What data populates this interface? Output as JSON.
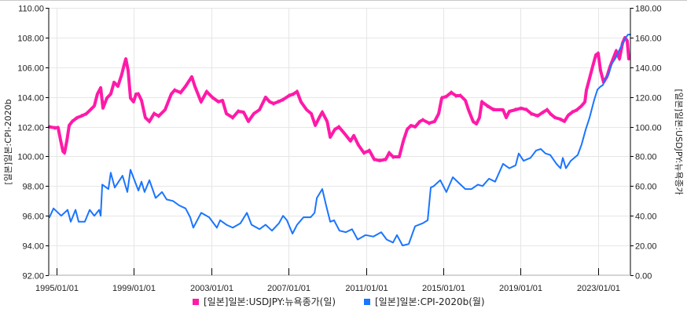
{
  "chart_data": {
    "type": "line",
    "title": "",
    "left_axis": {
      "label": "[일본]일본:CPI-2020b",
      "min": 92,
      "max": 110,
      "step": 2,
      "ticks": [
        "92.00",
        "94.00",
        "96.00",
        "98.00",
        "100.00",
        "102.00",
        "104.00",
        "106.00",
        "108.00",
        "110.00"
      ]
    },
    "right_axis": {
      "label": "[일본]일본:USDJPY:뉴욕종가",
      "min": 0,
      "max": 180,
      "step": 20,
      "ticks": [
        "0.00",
        "20.00",
        "40.00",
        "60.00",
        "80.00",
        "100.00",
        "120.00",
        "140.00",
        "160.00",
        "180.00"
      ]
    },
    "x_axis": {
      "min": 1994.6,
      "max": 2024.7,
      "ticks": [
        {
          "label": "1995/01/01",
          "year": 1995.0
        },
        {
          "label": "1999/01/01",
          "year": 1999.0
        },
        {
          "label": "2003/01/01",
          "year": 2003.0
        },
        {
          "label": "2007/01/01",
          "year": 2007.0
        },
        {
          "label": "2011/01/01",
          "year": 2011.0
        },
        {
          "label": "2015/01/01",
          "year": 2015.0
        },
        {
          "label": "2019/01/01",
          "year": 2019.0
        },
        {
          "label": "2023/01/01",
          "year": 2023.0
        }
      ]
    },
    "grid": true,
    "legend_position": "bottom",
    "series": [
      {
        "name": "[일본]일본:USDJPY:뉴욕종가(일)",
        "axis": "right",
        "color": "#ff1aa8",
        "points": [
          [
            1994.63,
            99.8
          ],
          [
            1994.92,
            99.3
          ],
          [
            1995.08,
            99.3
          ],
          [
            1995.2,
            91.3
          ],
          [
            1995.33,
            83.4
          ],
          [
            1995.41,
            82.4
          ],
          [
            1995.53,
            90.3
          ],
          [
            1995.65,
            100.8
          ],
          [
            1995.81,
            103.5
          ],
          [
            1996.06,
            106.1
          ],
          [
            1996.3,
            107.2
          ],
          [
            1996.54,
            108.8
          ],
          [
            1996.75,
            111.4
          ],
          [
            1996.95,
            114.0
          ],
          [
            1997.11,
            122.0
          ],
          [
            1997.28,
            126.2
          ],
          [
            1997.4,
            112.5
          ],
          [
            1997.6,
            119.3
          ],
          [
            1997.8,
            122.0
          ],
          [
            1997.97,
            129.9
          ],
          [
            1998.17,
            127.2
          ],
          [
            1998.37,
            135.2
          ],
          [
            1998.5,
            142.0
          ],
          [
            1998.58,
            145.7
          ],
          [
            1998.7,
            137.8
          ],
          [
            1998.82,
            119.3
          ],
          [
            1998.98,
            116.7
          ],
          [
            1999.11,
            122.0
          ],
          [
            1999.23,
            122.0
          ],
          [
            1999.39,
            117.7
          ],
          [
            1999.59,
            106.1
          ],
          [
            1999.8,
            103.5
          ],
          [
            2000.04,
            108.8
          ],
          [
            2000.28,
            107.2
          ],
          [
            2000.61,
            111.4
          ],
          [
            2000.93,
            122.0
          ],
          [
            2001.1,
            124.6
          ],
          [
            2001.42,
            123.0
          ],
          [
            2001.67,
            127.2
          ],
          [
            2001.99,
            133.6
          ],
          [
            2002.15,
            127.2
          ],
          [
            2002.47,
            116.7
          ],
          [
            2002.76,
            123.6
          ],
          [
            2003.05,
            119.8
          ],
          [
            2003.37,
            116.7
          ],
          [
            2003.58,
            117.7
          ],
          [
            2003.78,
            108.8
          ],
          [
            2004.11,
            106.1
          ],
          [
            2004.39,
            110.3
          ],
          [
            2004.67,
            109.8
          ],
          [
            2004.92,
            103.5
          ],
          [
            2005.2,
            108.8
          ],
          [
            2005.49,
            111.4
          ],
          [
            2005.81,
            119.8
          ],
          [
            2006.02,
            116.7
          ],
          [
            2006.22,
            115.6
          ],
          [
            2006.46,
            116.7
          ],
          [
            2006.71,
            118.3
          ],
          [
            2007.03,
            120.9
          ],
          [
            2007.24,
            122.0
          ],
          [
            2007.44,
            123.6
          ],
          [
            2007.64,
            116.7
          ],
          [
            2007.93,
            111.4
          ],
          [
            2008.17,
            108.8
          ],
          [
            2008.38,
            100.8
          ],
          [
            2008.58,
            106.1
          ],
          [
            2008.74,
            109.8
          ],
          [
            2008.99,
            103.5
          ],
          [
            2009.15,
            92.9
          ],
          [
            2009.39,
            98.2
          ],
          [
            2009.6,
            99.8
          ],
          [
            2009.88,
            95.6
          ],
          [
            2010.2,
            90.3
          ],
          [
            2010.37,
            94.0
          ],
          [
            2010.61,
            87.6
          ],
          [
            2010.89,
            82.4
          ],
          [
            2011.18,
            83.9
          ],
          [
            2011.42,
            78.1
          ],
          [
            2011.71,
            77.1
          ],
          [
            2012.03,
            78.1
          ],
          [
            2012.2,
            82.4
          ],
          [
            2012.4,
            79.7
          ],
          [
            2012.72,
            79.7
          ],
          [
            2012.93,
            90.3
          ],
          [
            2013.13,
            98.2
          ],
          [
            2013.33,
            100.8
          ],
          [
            2013.54,
            99.8
          ],
          [
            2013.78,
            103.5
          ],
          [
            2013.94,
            104.5
          ],
          [
            2014.27,
            102.4
          ],
          [
            2014.55,
            103.5
          ],
          [
            2014.76,
            108.8
          ],
          [
            2014.92,
            119.3
          ],
          [
            2015.16,
            120.4
          ],
          [
            2015.41,
            123.0
          ],
          [
            2015.65,
            120.9
          ],
          [
            2015.89,
            120.9
          ],
          [
            2016.14,
            117.7
          ],
          [
            2016.3,
            111.4
          ],
          [
            2016.54,
            103.5
          ],
          [
            2016.71,
            101.9
          ],
          [
            2016.87,
            106.1
          ],
          [
            2016.99,
            116.7
          ],
          [
            2017.28,
            114.0
          ],
          [
            2017.6,
            111.4
          ],
          [
            2018.09,
            111.4
          ],
          [
            2018.25,
            106.1
          ],
          [
            2018.41,
            110.3
          ],
          [
            2018.74,
            111.4
          ],
          [
            2019.02,
            112.5
          ],
          [
            2019.31,
            111.4
          ],
          [
            2019.55,
            108.8
          ],
          [
            2019.88,
            107.2
          ],
          [
            2020.16,
            109.8
          ],
          [
            2020.37,
            111.4
          ],
          [
            2020.53,
            108.8
          ],
          [
            2020.77,
            106.1
          ],
          [
            2021.06,
            105.1
          ],
          [
            2021.26,
            103.5
          ],
          [
            2021.46,
            107.7
          ],
          [
            2021.67,
            109.8
          ],
          [
            2021.91,
            111.4
          ],
          [
            2022.15,
            114.0
          ],
          [
            2022.32,
            116.7
          ],
          [
            2022.4,
            124.6
          ],
          [
            2022.56,
            132.5
          ],
          [
            2022.72,
            140.4
          ],
          [
            2022.89,
            148.4
          ],
          [
            2023.01,
            149.4
          ],
          [
            2023.13,
            137.8
          ],
          [
            2023.29,
            129.9
          ],
          [
            2023.46,
            133.6
          ],
          [
            2023.62,
            140.4
          ],
          [
            2023.78,
            145.7
          ],
          [
            2023.94,
            151.0
          ],
          [
            2024.11,
            145.7
          ],
          [
            2024.27,
            156.3
          ],
          [
            2024.39,
            160.0
          ],
          [
            2024.51,
            157.9
          ],
          [
            2024.59,
            145.7
          ]
        ]
      },
      {
        "name": "[일본]일본:CPI-2020b(월)",
        "axis": "left",
        "color": "#1a75ff",
        "points": [
          [
            1994.63,
            95.9
          ],
          [
            1994.84,
            96.5
          ],
          [
            1995.24,
            96.0
          ],
          [
            1995.57,
            96.4
          ],
          [
            1995.73,
            95.6
          ],
          [
            1995.98,
            96.4
          ],
          [
            1996.14,
            95.6
          ],
          [
            1996.46,
            95.6
          ],
          [
            1996.71,
            96.4
          ],
          [
            1996.95,
            96.0
          ],
          [
            1997.2,
            96.4
          ],
          [
            1997.28,
            96.0
          ],
          [
            1997.36,
            98.1
          ],
          [
            1997.68,
            97.8
          ],
          [
            1997.8,
            98.9
          ],
          [
            1998.01,
            97.9
          ],
          [
            1998.41,
            98.7
          ],
          [
            1998.66,
            97.6
          ],
          [
            1998.82,
            99.1
          ],
          [
            1999.23,
            97.7
          ],
          [
            1999.39,
            98.3
          ],
          [
            1999.55,
            97.6
          ],
          [
            1999.8,
            98.4
          ],
          [
            2000.12,
            97.2
          ],
          [
            2000.45,
            97.6
          ],
          [
            2000.69,
            97.1
          ],
          [
            2001.02,
            97.0
          ],
          [
            2001.34,
            96.7
          ],
          [
            2001.67,
            96.5
          ],
          [
            2001.91,
            95.9
          ],
          [
            2002.07,
            95.2
          ],
          [
            2002.48,
            96.2
          ],
          [
            2002.89,
            95.9
          ],
          [
            2003.29,
            95.2
          ],
          [
            2003.46,
            95.7
          ],
          [
            2003.78,
            95.4
          ],
          [
            2004.11,
            95.2
          ],
          [
            2004.51,
            95.5
          ],
          [
            2004.84,
            96.2
          ],
          [
            2005.08,
            95.4
          ],
          [
            2005.49,
            95.1
          ],
          [
            2005.81,
            95.4
          ],
          [
            2006.14,
            95.0
          ],
          [
            2006.5,
            95.5
          ],
          [
            2006.71,
            96.0
          ],
          [
            2006.91,
            95.7
          ],
          [
            2007.2,
            94.8
          ],
          [
            2007.44,
            95.4
          ],
          [
            2007.77,
            95.9
          ],
          [
            2008.14,
            95.9
          ],
          [
            2008.34,
            96.2
          ],
          [
            2008.46,
            97.2
          ],
          [
            2008.74,
            97.8
          ],
          [
            2008.94,
            96.7
          ],
          [
            2009.15,
            95.6
          ],
          [
            2009.35,
            95.7
          ],
          [
            2009.63,
            95.0
          ],
          [
            2009.96,
            94.9
          ],
          [
            2010.28,
            95.1
          ],
          [
            2010.57,
            94.4
          ],
          [
            2010.98,
            94.7
          ],
          [
            2011.38,
            94.6
          ],
          [
            2011.79,
            94.9
          ],
          [
            2012.07,
            94.4
          ],
          [
            2012.4,
            94.2
          ],
          [
            2012.6,
            94.7
          ],
          [
            2012.89,
            94.0
          ],
          [
            2013.21,
            94.1
          ],
          [
            2013.54,
            95.3
          ],
          [
            2013.94,
            95.5
          ],
          [
            2014.19,
            95.7
          ],
          [
            2014.35,
            97.9
          ],
          [
            2014.51,
            98.0
          ],
          [
            2014.84,
            98.4
          ],
          [
            2015.16,
            97.6
          ],
          [
            2015.49,
            98.6
          ],
          [
            2015.81,
            98.2
          ],
          [
            2016.14,
            97.8
          ],
          [
            2016.46,
            97.8
          ],
          [
            2016.79,
            98.1
          ],
          [
            2017.03,
            98.0
          ],
          [
            2017.36,
            98.5
          ],
          [
            2017.68,
            98.3
          ],
          [
            2018.09,
            99.5
          ],
          [
            2018.41,
            99.2
          ],
          [
            2018.74,
            99.4
          ],
          [
            2018.9,
            100.2
          ],
          [
            2019.15,
            99.7
          ],
          [
            2019.51,
            99.9
          ],
          [
            2019.8,
            100.4
          ],
          [
            2020.04,
            100.5
          ],
          [
            2020.28,
            100.2
          ],
          [
            2020.53,
            100.1
          ],
          [
            2020.85,
            99.5
          ],
          [
            2021.06,
            99.2
          ],
          [
            2021.18,
            99.9
          ],
          [
            2021.34,
            99.2
          ],
          [
            2021.59,
            99.7
          ],
          [
            2021.95,
            100.1
          ],
          [
            2022.15,
            100.8
          ],
          [
            2022.36,
            101.8
          ],
          [
            2022.56,
            102.6
          ],
          [
            2022.8,
            103.8
          ],
          [
            2022.97,
            104.5
          ],
          [
            2023.13,
            104.7
          ],
          [
            2023.25,
            104.8
          ],
          [
            2023.37,
            105.2
          ],
          [
            2023.54,
            105.5
          ],
          [
            2023.7,
            106.2
          ],
          [
            2023.9,
            106.6
          ],
          [
            2024.19,
            107.4
          ],
          [
            2024.39,
            107.9
          ],
          [
            2024.55,
            108.2
          ],
          [
            2024.67,
            108.2
          ]
        ]
      }
    ]
  },
  "legend": {
    "items": [
      {
        "label": "[일본]일본:USDJPY:뉴욕종가(일)",
        "color": "#ff1aa8"
      },
      {
        "label": "[일본]일본:CPI-2020b(월)",
        "color": "#1a75ff"
      }
    ]
  }
}
